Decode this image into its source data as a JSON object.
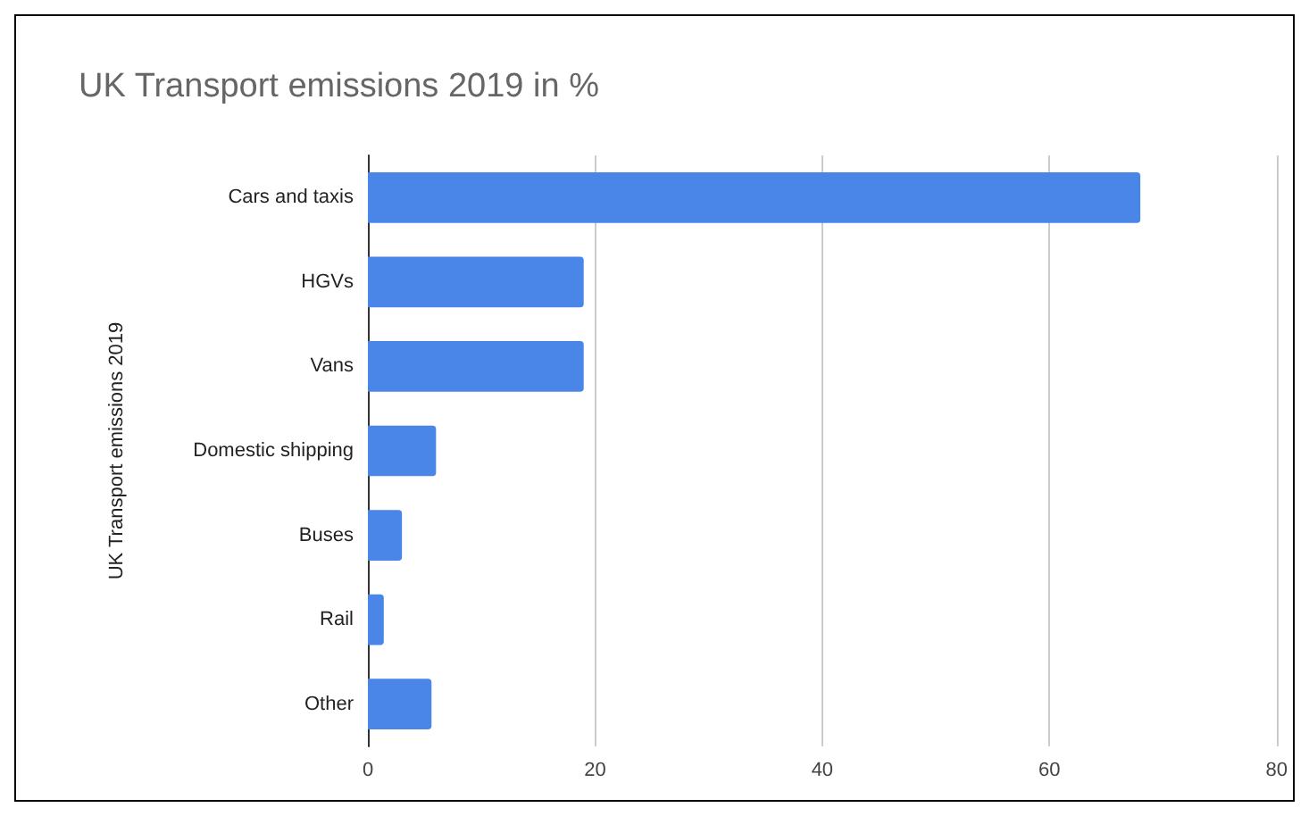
{
  "chart_data": {
    "type": "bar",
    "orientation": "horizontal",
    "title": "UK Transport emissions 2019 in %",
    "ylabel": "UK Transport emissions 2019",
    "categories": [
      "Cars and taxis",
      "HGVs",
      "Vans",
      "Domestic shipping",
      "Buses",
      "Rail",
      "Other"
    ],
    "values": [
      68,
      19,
      19,
      6,
      3,
      1.4,
      5.6
    ],
    "color": "#4a86e8",
    "xlim": [
      0,
      80
    ],
    "xticks": [
      0,
      20,
      40,
      60,
      80
    ],
    "grid": "x"
  }
}
